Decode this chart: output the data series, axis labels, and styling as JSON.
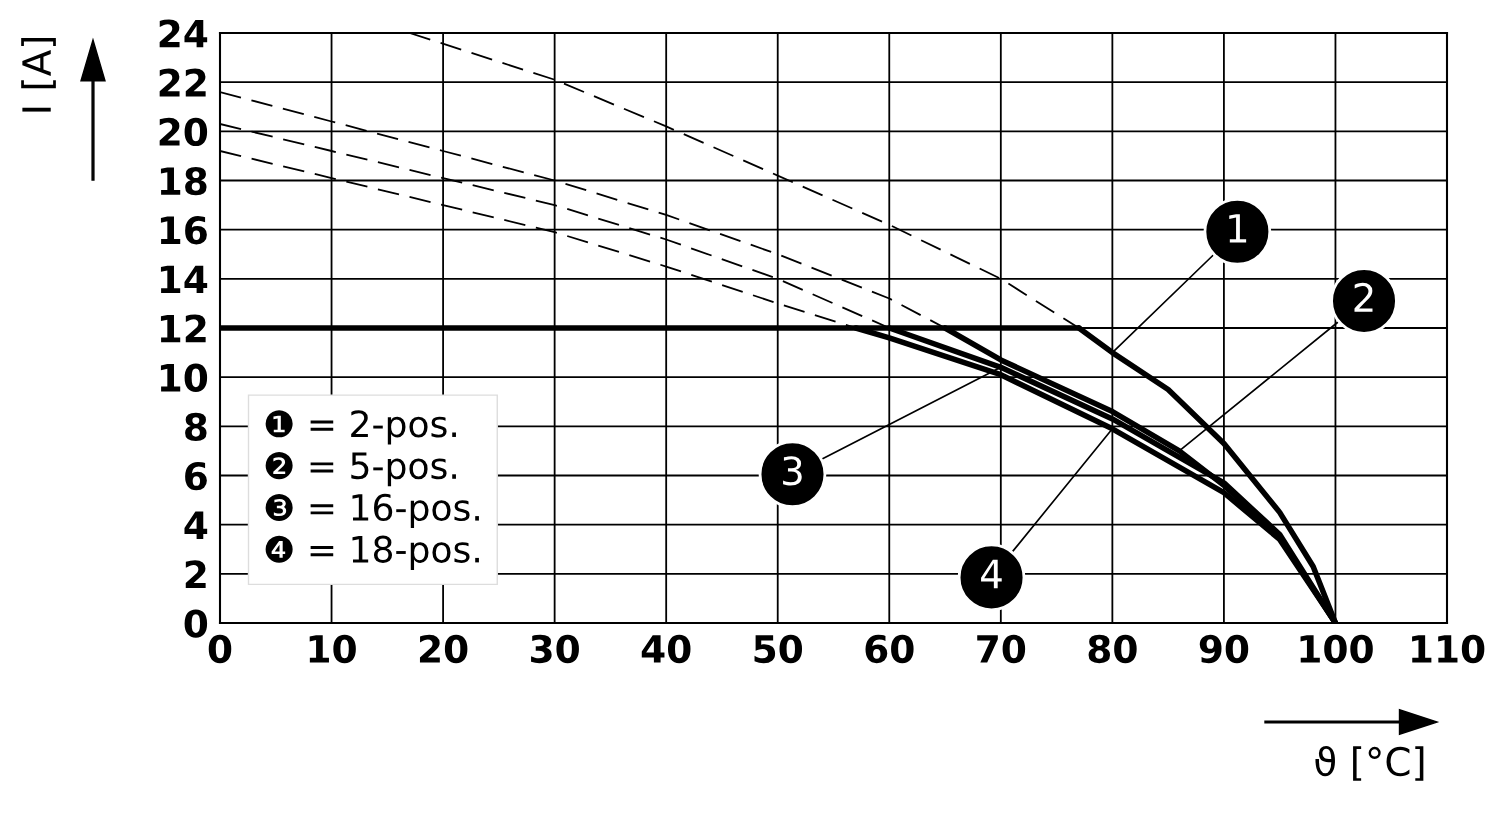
{
  "chart_data": {
    "type": "line",
    "xlabel": "ϑ [°C]",
    "ylabel": "I [A]",
    "xlim": [
      0,
      110
    ],
    "ylim": [
      0,
      24
    ],
    "xticks": [
      0,
      10,
      20,
      30,
      40,
      50,
      60,
      70,
      80,
      90,
      100,
      110
    ],
    "yticks": [
      0,
      2,
      4,
      6,
      8,
      10,
      12,
      14,
      16,
      18,
      20,
      22,
      24
    ],
    "grid": true,
    "marker": "none",
    "series": [
      {
        "color": "#000000",
        "line_style": "solid",
        "x": [
          0,
          77
        ],
        "values": [
          12,
          12
        ]
      },
      {
        "color": "#000000",
        "line_style": "solid",
        "x": [
          77,
          80,
          85,
          90,
          95,
          98,
          100
        ],
        "values": [
          12,
          11,
          9.5,
          7.3,
          4.5,
          2.3,
          0
        ]
      },
      {
        "color": "#000000",
        "line_style": "solid",
        "x": [
          65,
          70,
          80,
          86,
          90,
          95,
          100
        ],
        "values": [
          12,
          10.7,
          8.6,
          7,
          5.6,
          3.5,
          0
        ]
      },
      {
        "color": "#000000",
        "line_style": "solid",
        "x": [
          60,
          70,
          80,
          90,
          95,
          100
        ],
        "values": [
          12,
          10.4,
          8.3,
          5.7,
          3.6,
          0
        ]
      },
      {
        "color": "#000000",
        "line_style": "solid",
        "x": [
          57,
          60,
          70,
          80,
          90,
          95,
          100
        ],
        "values": [
          12,
          11.6,
          10.1,
          7.9,
          5.3,
          3.4,
          0
        ]
      },
      {
        "color": "#000000",
        "line_style": "dashed",
        "x": [
          17,
          30,
          40,
          50,
          60,
          70,
          77
        ],
        "values": [
          24,
          22.1,
          20.2,
          18.2,
          16.2,
          14,
          12
        ]
      },
      {
        "color": "#000000",
        "line_style": "dashed",
        "x": [
          0,
          10,
          20,
          30,
          40,
          50,
          60,
          65
        ],
        "values": [
          21.6,
          20.4,
          19.2,
          18,
          16.6,
          15,
          13.2,
          12
        ]
      },
      {
        "color": "#000000",
        "line_style": "dashed",
        "x": [
          0,
          10,
          20,
          30,
          40,
          50,
          60
        ],
        "values": [
          20.3,
          19.2,
          18.1,
          17,
          15.6,
          14,
          12
        ]
      },
      {
        "color": "#000000",
        "line_style": "dashed",
        "x": [
          0,
          10,
          20,
          30,
          40,
          50,
          57
        ],
        "values": [
          19.2,
          18.1,
          17,
          15.9,
          14.5,
          13,
          12
        ]
      }
    ],
    "annotations": [
      {
        "text": "1",
        "x": 80,
        "y": 11
      },
      {
        "text": "2",
        "x": 86,
        "y": 7
      },
      {
        "text": "3",
        "x": 70,
        "y": 10.4
      },
      {
        "text": "4",
        "x": 80,
        "y": 7.9
      },
      "❶ = 2-pos.",
      "❷ = 5-pos.",
      "❸ = 16-pos.",
      "❹ = 18-pos."
    ]
  }
}
